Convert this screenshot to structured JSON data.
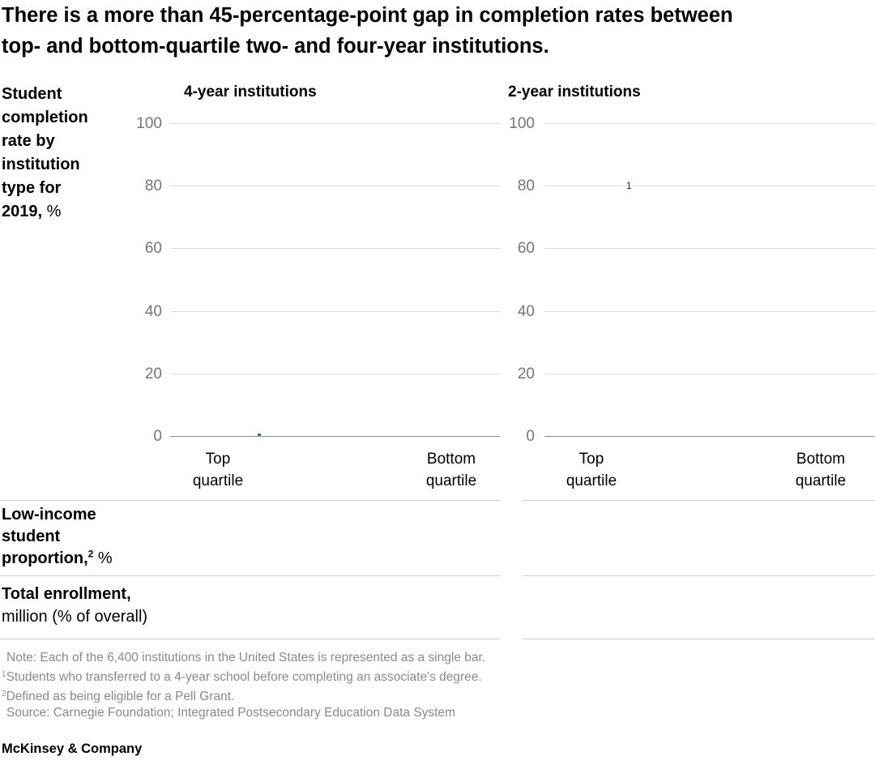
{
  "brand": {
    "logo_text": "McKinsey & Company"
  },
  "title": {
    "full": "There is a more than 45-percentage-point gap in completion rates between top- and bottom-quartile two- and four-year institutions.",
    "line1": "There is a more than 45-percentage-point gap in completion rates between",
    "line2": "top- and bottom-quartile two- and four-year institutions."
  },
  "y_axis_label": {
    "bold": "Student completion rate by institution type for 2019,",
    "unit": "%"
  },
  "chart_data": [
    {
      "type": "bar",
      "title": "4-year institutions",
      "categories": [
        "Top quartile",
        "Bottom quartile"
      ],
      "yticks": [
        "100",
        "80",
        "60",
        "40",
        "20",
        "0"
      ],
      "ylim": [
        0,
        100
      ],
      "ylabel": "Student completion rate by institution type for 2019, %",
      "grid": "horizontal gridlines at 0,20,40,60,80,100",
      "series": [],
      "bars_rendered": false,
      "visible_marks": [
        {
          "kind": "bar-remnant",
          "color": "#35789f",
          "x_frac": 0.27,
          "y_value": 0
        }
      ]
    },
    {
      "type": "bar",
      "title": "2-year institutions",
      "categories": [
        "Top quartile",
        "Bottom quartile"
      ],
      "yticks": [
        "100",
        "80",
        "60",
        "40",
        "20",
        "0"
      ],
      "ylim": [
        0,
        100
      ],
      "ylabel": "Student completion rate by institution type for 2019, %",
      "grid": "horizontal gridlines at 0,20,40,60,80,100",
      "series": [],
      "bars_rendered": false,
      "annotations": [
        {
          "text": "1",
          "y_value": 79,
          "x_frac": 0.26
        }
      ]
    }
  ],
  "rows": [
    {
      "bold": "Low-income student proportion,",
      "sup": "2",
      "unit": "%"
    },
    {
      "bold": "Total enrollment,",
      "unit": "million (% of overall)"
    }
  ],
  "footnotes": {
    "note": "Note: Each of the 6,400 institutions in the United States is represented as a single bar.",
    "fn1_sup": "1",
    "fn1_text": "Students who transferred to a 4-year school before completing an associate's degree.",
    "fn2_sup": "2",
    "fn2_text": "Defined as being eligible for a Pell Grant.",
    "source": "Source: Carnegie Foundation; Integrated Postsecondary Education Data System"
  },
  "colors": {
    "text": "#000000",
    "tick_label": "#767676",
    "gridline": "#dcdcdc",
    "zero_line": "#8f8f8f",
    "divider": "#cfcfcf",
    "footnote": "#8a8a8a",
    "bar_remnant_blue": "#35789f"
  }
}
